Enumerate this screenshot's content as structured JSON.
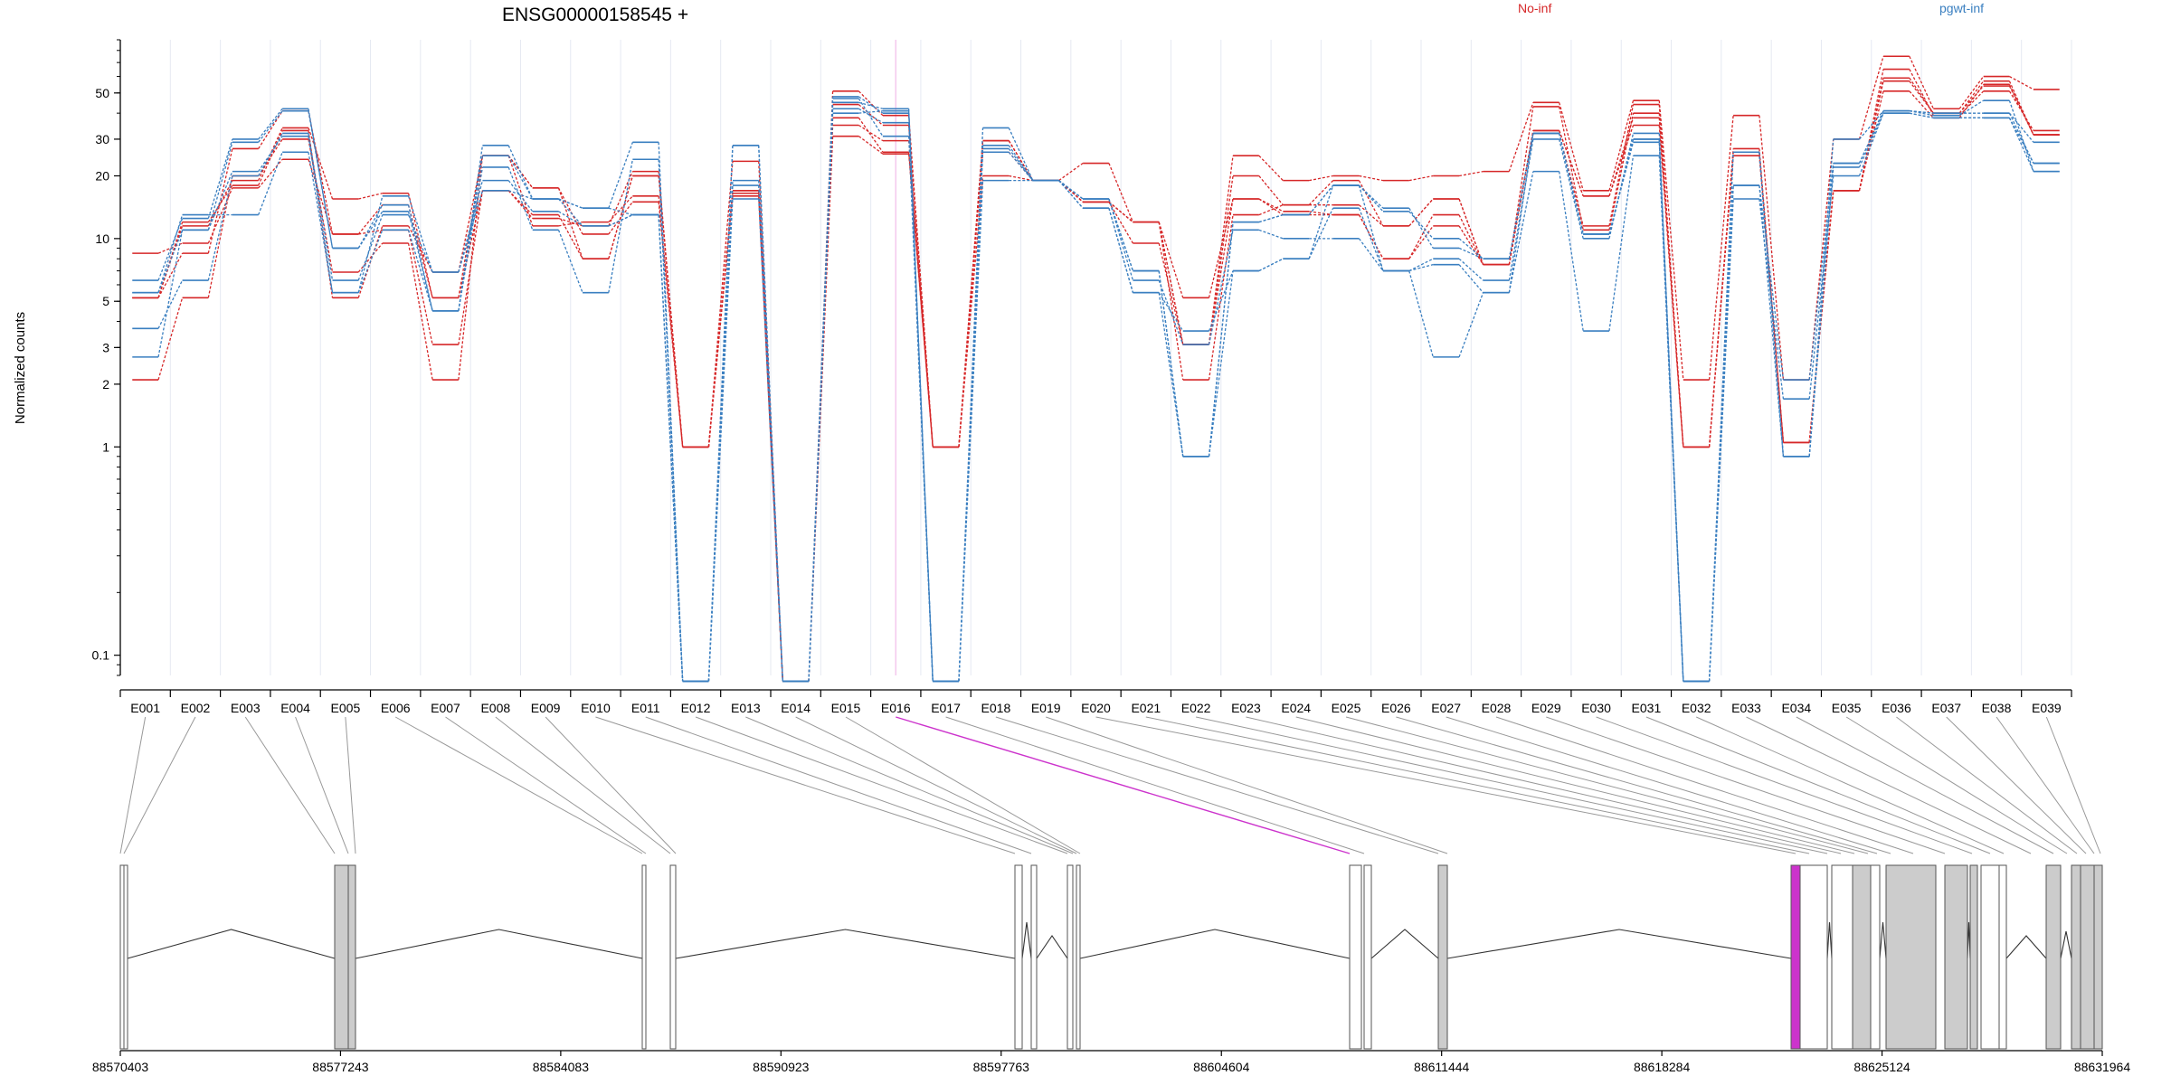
{
  "chart_data": {
    "type": "line",
    "title": "ENSG00000158545 +",
    "ylabel": "Normalized counts",
    "yscale": "log",
    "ylim": [
      0.08,
      90
    ],
    "yticks": [
      0.1,
      1,
      2,
      3,
      5,
      10,
      20,
      30,
      50
    ],
    "ytick_labels": [
      "0.1",
      "1",
      "2",
      "3",
      "5",
      "10",
      "20",
      "30",
      "50"
    ],
    "highlight_exon": "E016",
    "colors": {
      "No-inf": "#d62728",
      "pgwt-inf": "#3a7fc0",
      "highlight": "#cc33cc",
      "exon_fill": "#cccccc"
    },
    "categories": [
      "E001",
      "E002",
      "E003",
      "E004",
      "E005",
      "E006",
      "E007",
      "E008",
      "E009",
      "E010",
      "E011",
      "E012",
      "E013",
      "E014",
      "E015",
      "E016",
      "E017",
      "E018",
      "E019",
      "E020",
      "E021",
      "E022",
      "E023",
      "E024",
      "E025",
      "E026",
      "E027",
      "E028",
      "E029",
      "E030",
      "E031",
      "E032",
      "E033",
      "E034",
      "E035",
      "E036",
      "E037",
      "E038",
      "E039"
    ],
    "legend": [
      {
        "label": "No-inf",
        "color": "#d62728"
      },
      {
        "label": "pgwt-inf",
        "color": "#3a7fc0"
      }
    ],
    "series": [
      {
        "group": "No-inf",
        "values": [
          8.5,
          9.5,
          17.5,
          24,
          10.5,
          11,
          3.1,
          17,
          12.5,
          11.5,
          21,
          1.0,
          23.5,
          0.075,
          35,
          29.5,
          1.0,
          29.5,
          19,
          15,
          9.5,
          3.1,
          15.5,
          13.5,
          13,
          8,
          13,
          7.5,
          33,
          16,
          35,
          1.0,
          26,
          1.05,
          17,
          59,
          40,
          57,
          31.5
        ]
      },
      {
        "group": "No-inf",
        "values": [
          5.2,
          11.5,
          19,
          34,
          15.5,
          16.5,
          5.2,
          25,
          17.5,
          10.5,
          15,
          1.0,
          17,
          0.075,
          31,
          25.5,
          1.0,
          29.5,
          19,
          15,
          12,
          3.1,
          20,
          14.5,
          14.5,
          11.5,
          15.5,
          7.5,
          32,
          11.5,
          44,
          1.0,
          27,
          1.05,
          17,
          51,
          38,
          55,
          31.5
        ]
      },
      {
        "group": "No-inf",
        "values": [
          2.1,
          5.2,
          20,
          30,
          6.9,
          9.5,
          2.1,
          25,
          17.5,
          8,
          20,
          1.0,
          16.5,
          0.075,
          38,
          26,
          1.0,
          29.5,
          19,
          15,
          12,
          2.1,
          13,
          14.5,
          19,
          11.5,
          15.5,
          7.5,
          43,
          11,
          40,
          1.0,
          26,
          1.05,
          17,
          57,
          40,
          54,
          31.5
        ]
      },
      {
        "group": "No-inf",
        "values": [
          5.2,
          8.5,
          27,
          41,
          10.5,
          14.5,
          5.2,
          17,
          13,
          8,
          20,
          1.0,
          16,
          0.075,
          51,
          39,
          1.0,
          20,
          19,
          23,
          12,
          3.1,
          25,
          19,
          20,
          19,
          20,
          21,
          45,
          17,
          46,
          2.1,
          39,
          2.1,
          30,
          75,
          42,
          60,
          52
        ]
      },
      {
        "group": "No-inf",
        "values": [
          5.2,
          12,
          18,
          33,
          5.2,
          11.5,
          6.9,
          25,
          11.5,
          12,
          16,
          1.0,
          17,
          0.075,
          44,
          35,
          1.0,
          26,
          19,
          15,
          12,
          5.2,
          15.5,
          13,
          13,
          8,
          11.5,
          7.5,
          33,
          16,
          38,
          1.0,
          25,
          1.05,
          17,
          65,
          39,
          51,
          33
        ]
      },
      {
        "group": "pgwt-inf",
        "values": [
          6.3,
          12.5,
          30,
          42,
          9,
          14.5,
          4.5,
          28,
          15.5,
          14,
          29,
          0.075,
          28,
          0.075,
          48,
          40,
          0.075,
          34,
          19,
          15.5,
          7,
          0.9,
          12,
          13,
          18,
          14,
          9,
          8,
          32,
          10.5,
          30,
          0.075,
          18,
          2.1,
          23,
          41,
          40,
          40,
          29
        ]
      },
      {
        "group": "pgwt-inf",
        "values": [
          3.7,
          6.3,
          20,
          32,
          6.3,
          13,
          6.9,
          19,
          13.5,
          11.5,
          13,
          0.075,
          18,
          0.075,
          47,
          31,
          0.075,
          28,
          19,
          15.5,
          6.3,
          3.1,
          11,
          10,
          10,
          7,
          7.5,
          5.5,
          32,
          10.5,
          29,
          0.075,
          15.5,
          1.7,
          20,
          40,
          38,
          38,
          21
        ]
      },
      {
        "group": "pgwt-inf",
        "values": [
          2.7,
          11,
          21,
          31,
          5.5,
          11,
          4.5,
          22,
          11,
          5.5,
          24,
          0.075,
          19,
          0.075,
          42,
          36,
          0.075,
          27,
          19,
          14,
          5.5,
          3.6,
          7,
          8,
          14,
          7,
          2.7,
          5.5,
          21,
          3.6,
          25,
          0.075,
          26,
          0.9,
          22,
          40,
          38,
          38,
          23
        ]
      },
      {
        "group": "pgwt-inf",
        "values": [
          5.5,
          13,
          13,
          26,
          5.5,
          16,
          6.9,
          17,
          15.5,
          14,
          13,
          0.075,
          15.5,
          0.075,
          40,
          41,
          0.075,
          26,
          19,
          14,
          5.5,
          0.9,
          7,
          8,
          18,
          7,
          8,
          6.3,
          30,
          10,
          32,
          0.075,
          26,
          0.9,
          30,
          41,
          39,
          46,
          21
        ]
      },
      {
        "group": "pgwt-inf",
        "values": [
          5.5,
          11,
          29,
          41,
          9,
          13.5,
          4.5,
          25,
          15.5,
          11.5,
          13,
          0.075,
          28,
          0.075,
          45,
          42,
          0.075,
          19,
          19,
          15.5,
          7,
          0.9,
          12,
          13,
          18,
          13.5,
          10,
          8,
          32,
          10.5,
          30,
          0.075,
          18,
          0.9,
          23,
          41,
          40,
          40,
          23
        ]
      }
    ],
    "genomic_axis": {
      "tick_labels": [
        "88570403",
        "88577243",
        "88584083",
        "88590923",
        "88597763",
        "88604604",
        "88611444",
        "88618284",
        "88625124",
        "88631964"
      ],
      "tick_values": [
        88570403,
        88577243,
        88584083,
        88590923,
        88597763,
        88604604,
        88611444,
        88618284,
        88625124,
        88631964
      ],
      "range": [
        88570403,
        88631964
      ]
    }
  }
}
